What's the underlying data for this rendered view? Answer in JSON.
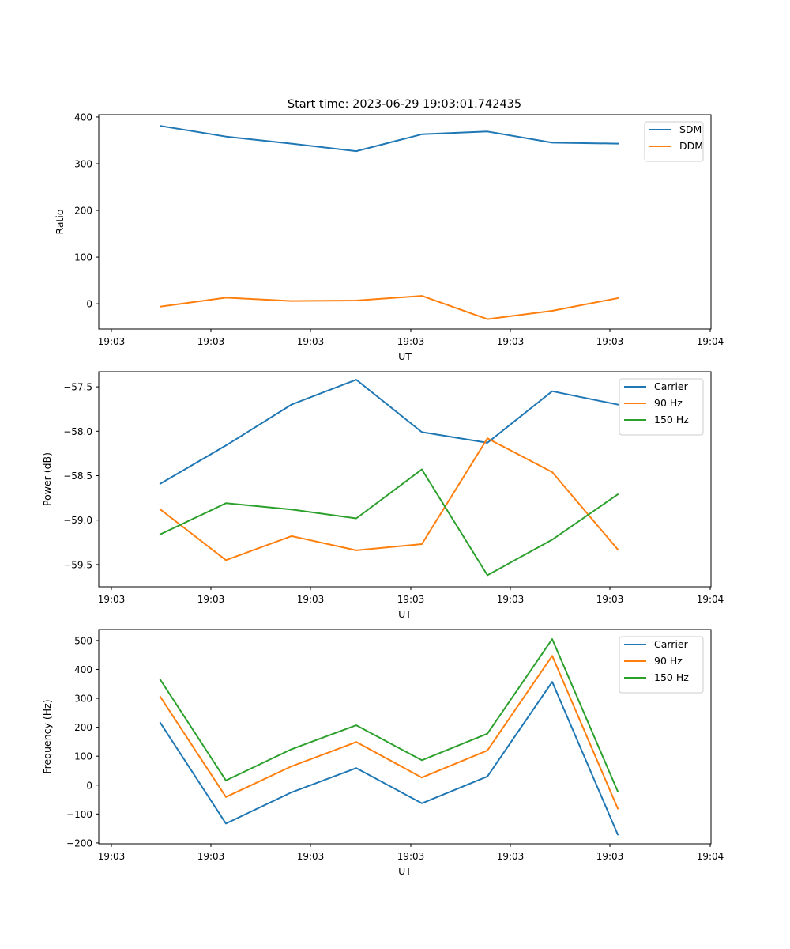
{
  "figure": {
    "title": "Start time: 2023-06-29 19:03:01.742435"
  },
  "colors": {
    "blue": "#1f77b4",
    "orange": "#ff7f0e",
    "green": "#2ca02c"
  },
  "chart_data": [
    {
      "type": "line",
      "title": "Start time: 2023-06-29 19:03:01.742435",
      "xlabel": "UT",
      "ylabel": "Ratio",
      "x_tick_labels": [
        "19:03",
        "19:03",
        "19:03",
        "19:03",
        "19:03",
        "19:03",
        "19:04"
      ],
      "y_ticks": [
        0,
        100,
        200,
        300,
        400
      ],
      "y_tick_labels": [
        "0",
        "100",
        "200",
        "300",
        "400"
      ],
      "ylim": [
        -54,
        405
      ],
      "legend_position": "upper right",
      "series": [
        {
          "name": "SDM",
          "color": "#1f77b4",
          "values": [
            381,
            358,
            343,
            327,
            363,
            369,
            345,
            343
          ]
        },
        {
          "name": "DDM",
          "color": "#ff7f0e",
          "values": [
            -6,
            13,
            6,
            7,
            17,
            -33,
            -15,
            12
          ]
        }
      ]
    },
    {
      "type": "line",
      "title": "",
      "xlabel": "UT",
      "ylabel": "Power (dB)",
      "x_tick_labels": [
        "19:03",
        "19:03",
        "19:03",
        "19:03",
        "19:03",
        "19:03",
        "19:04"
      ],
      "y_ticks": [
        -59.5,
        -59.0,
        -58.5,
        -58.0,
        -57.5
      ],
      "y_tick_labels": [
        "−59.5",
        "−59.0",
        "−58.5",
        "−58.0",
        "−57.5"
      ],
      "ylim": [
        -59.75,
        -57.33
      ],
      "legend_position": "upper right",
      "series": [
        {
          "name": "Carrier",
          "color": "#1f77b4",
          "values": [
            -58.59,
            -58.16,
            -57.7,
            -57.42,
            -58.01,
            -58.13,
            -57.55,
            -57.7
          ]
        },
        {
          "name": "90 Hz",
          "color": "#ff7f0e",
          "values": [
            -58.88,
            -59.45,
            -59.18,
            -59.34,
            -59.27,
            -58.08,
            -58.46,
            -59.33
          ]
        },
        {
          "name": "150 Hz",
          "color": "#2ca02c",
          "values": [
            -59.16,
            -58.81,
            -58.88,
            -58.98,
            -58.43,
            -59.62,
            -59.22,
            -58.71
          ]
        }
      ]
    },
    {
      "type": "line",
      "title": "",
      "xlabel": "UT",
      "ylabel": "Frequency (Hz)",
      "x_tick_labels": [
        "19:03",
        "19:03",
        "19:03",
        "19:03",
        "19:03",
        "19:03",
        "19:04"
      ],
      "y_ticks": [
        -200,
        -100,
        0,
        100,
        200,
        300,
        400,
        500
      ],
      "y_tick_labels": [
        "−200",
        "−100",
        "0",
        "100",
        "200",
        "300",
        "400",
        "500"
      ],
      "ylim": [
        -203,
        538
      ],
      "legend_position": "upper right",
      "series": [
        {
          "name": "Carrier",
          "color": "#1f77b4",
          "values": [
            215,
            -133,
            -25,
            59,
            -63,
            30,
            357,
            -171
          ]
        },
        {
          "name": "90 Hz",
          "color": "#ff7f0e",
          "values": [
            305,
            -41,
            65,
            149,
            26,
            120,
            447,
            -81
          ]
        },
        {
          "name": "150 Hz",
          "color": "#2ca02c",
          "values": [
            364,
            16,
            124,
            207,
            86,
            178,
            505,
            -22
          ]
        }
      ]
    }
  ]
}
